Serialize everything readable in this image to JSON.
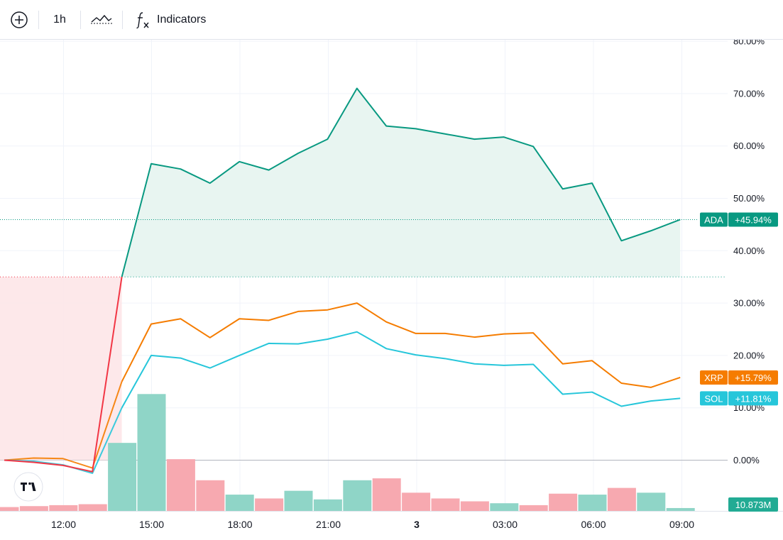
{
  "toolbar": {
    "add_icon": "plus-circle-icon",
    "interval": "1h",
    "chart_type_icon": "compare-line-icon",
    "indicators_icon": "fx-icon",
    "indicators_label": "Indicators"
  },
  "watermark_icon": "tradingview-logo-icon",
  "colors": {
    "ADA": "#089981",
    "XRP": "#f57c00",
    "SOL": "#26c6da",
    "red": "#f23645",
    "vol_up": "#8fd5c7",
    "vol_down": "#f7a9b0"
  },
  "chart_data": {
    "type": "line",
    "x": [
      "11:00",
      "12:00",
      "13:00",
      "14:00",
      "15:00",
      "16:00",
      "17:00",
      "18:00",
      "19:00",
      "20:00",
      "21:00",
      "22:00",
      "23:00",
      "00:00",
      "01:00",
      "02:00",
      "03:00",
      "04:00",
      "05:00",
      "06:00",
      "07:00",
      "08:00",
      "09:00",
      "10:00"
    ],
    "x_tick_labels": [
      "12:00",
      "15:00",
      "18:00",
      "21:00",
      "3",
      "03:00",
      "06:00",
      "09:00"
    ],
    "y_unit": "%",
    "y_tick_labels": [
      "80.00%",
      "70.00%",
      "60.00%",
      "50.00%",
      "40.00%",
      "30.00%",
      "20.00%",
      "10.00%",
      "0.00%"
    ],
    "ylim": [
      -10,
      80
    ],
    "grid": true,
    "series": [
      {
        "name": "ADA",
        "color": "#089981",
        "last_label": "+45.94%",
        "values": [
          0,
          -0.4,
          -1.0,
          -2.2,
          35.0,
          56.6,
          55.6,
          52.9,
          57.0,
          55.4,
          58.6,
          61.3,
          71.0,
          63.8,
          63.3,
          62.3,
          61.3,
          61.7,
          59.9,
          51.8,
          52.9,
          41.9,
          43.8,
          45.94
        ]
      },
      {
        "name": "XRP",
        "color": "#f57c00",
        "last_label": "+15.79%",
        "values": [
          0,
          0.4,
          0.3,
          -1.5,
          15.0,
          26.0,
          27.0,
          23.4,
          27.0,
          26.7,
          28.4,
          28.7,
          30.0,
          26.4,
          24.2,
          24.2,
          23.5,
          24.1,
          24.3,
          18.4,
          19.0,
          14.7,
          13.9,
          15.79
        ]
      },
      {
        "name": "SOL",
        "color": "#26c6da",
        "last_label": "+11.81%",
        "values": [
          0,
          -0.2,
          -0.9,
          -2.5,
          10.0,
          20.0,
          19.5,
          17.6,
          20.0,
          22.3,
          22.2,
          23.1,
          24.5,
          21.3,
          20.1,
          19.4,
          18.4,
          18.1,
          18.3,
          12.6,
          13.0,
          10.3,
          11.3,
          11.81
        ]
      }
    ],
    "volume": {
      "last_label": "10.873M",
      "bars": [
        {
          "value": 0.4,
          "dir": "down"
        },
        {
          "value": 0.5,
          "dir": "down"
        },
        {
          "value": 0.6,
          "dir": "down"
        },
        {
          "value": 0.7,
          "dir": "down"
        },
        {
          "value": 7.1,
          "dir": "up"
        },
        {
          "value": 12.2,
          "dir": "up"
        },
        {
          "value": 5.4,
          "dir": "down"
        },
        {
          "value": 3.2,
          "dir": "down"
        },
        {
          "value": 1.7,
          "dir": "up"
        },
        {
          "value": 1.3,
          "dir": "down"
        },
        {
          "value": 2.1,
          "dir": "up"
        },
        {
          "value": 1.2,
          "dir": "up"
        },
        {
          "value": 3.2,
          "dir": "up"
        },
        {
          "value": 3.4,
          "dir": "down"
        },
        {
          "value": 1.9,
          "dir": "down"
        },
        {
          "value": 1.3,
          "dir": "down"
        },
        {
          "value": 1.0,
          "dir": "down"
        },
        {
          "value": 0.8,
          "dir": "up"
        },
        {
          "value": 0.6,
          "dir": "down"
        },
        {
          "value": 1.8,
          "dir": "down"
        },
        {
          "value": 1.7,
          "dir": "up"
        },
        {
          "value": 2.4,
          "dir": "down"
        },
        {
          "value": 1.9,
          "dir": "up"
        },
        {
          "value": 0.3,
          "dir": "up"
        }
      ]
    }
  }
}
